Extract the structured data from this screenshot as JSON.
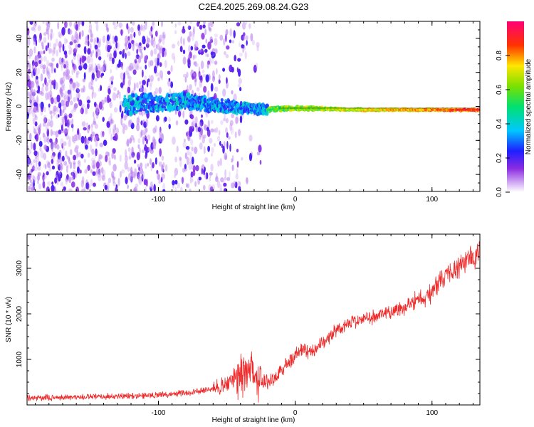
{
  "figure_title": "C2E4.2025.269.08.24.G23",
  "chart_data": [
    {
      "type": "heatmap",
      "title": "C2E4.2025.269.08.24.G23",
      "xlabel": "Height of straight line (km)",
      "ylabel": "Frequency (Hz)",
      "xlim": [
        -196,
        135
      ],
      "ylim": [
        -50,
        50
      ],
      "x_ticks": [
        -100,
        0,
        100
      ],
      "x_tick_labels": [
        "-100",
        "0",
        "100"
      ],
      "y_ticks": [
        -40,
        -20,
        0,
        20,
        40
      ],
      "y_tick_labels": [
        "-40",
        "-20",
        "0",
        "20",
        "40"
      ],
      "colorbar": {
        "label": "Normalized spectral amplitude",
        "range": [
          0,
          1
        ],
        "ticks": [
          0.0,
          0.2,
          0.4,
          0.6,
          0.8
        ],
        "tick_labels": [
          "0.0",
          "0.2",
          "0.4",
          "0.6",
          "0.8"
        ],
        "colormap": "rainbow (violet→blue→cyan→green→yellow→red→magenta)"
      },
      "features": {
        "signal_line_frequency_hz": [
          [
            -120,
            1
          ],
          [
            -80,
            3
          ],
          [
            -50,
            0
          ],
          [
            -20,
            -2
          ],
          [
            0,
            -1
          ],
          [
            50,
            -2
          ],
          [
            100,
            -2
          ],
          [
            135,
            -2
          ]
        ],
        "signal_start_km": -125,
        "noise_region_km": [
          -196,
          -60
        ]
      }
    },
    {
      "type": "line",
      "xlabel": "Height of straight line (km)",
      "ylabel": "SNR (10 * v/v)",
      "xlim": [
        -196,
        135
      ],
      "ylim": [
        0,
        3750
      ],
      "x_ticks": [
        -100,
        0,
        100
      ],
      "x_tick_labels": [
        "-100",
        "0",
        "100"
      ],
      "y_ticks": [
        1000,
        2000,
        3000
      ],
      "y_tick_labels": [
        "1000",
        "2000",
        "3000"
      ],
      "series": [
        {
          "name": "SNR",
          "color": "#ee2a2a",
          "x": [
            -196,
            -180,
            -160,
            -140,
            -120,
            -100,
            -80,
            -60,
            -50,
            -40,
            -35,
            -30,
            -25,
            -20,
            -15,
            -10,
            -5,
            0,
            5,
            10,
            15,
            20,
            25,
            30,
            40,
            50,
            60,
            70,
            80,
            85,
            90,
            95,
            100,
            105,
            110,
            120,
            130,
            135
          ],
          "values": [
            150,
            160,
            170,
            180,
            200,
            220,
            260,
            350,
            450,
            600,
            800,
            750,
            550,
            500,
            600,
            750,
            950,
            1100,
            1200,
            1150,
            1250,
            1350,
            1500,
            1650,
            1800,
            1900,
            1950,
            2050,
            2150,
            2250,
            2350,
            2300,
            2500,
            2700,
            2850,
            3050,
            3250,
            3350
          ]
        }
      ]
    }
  ]
}
